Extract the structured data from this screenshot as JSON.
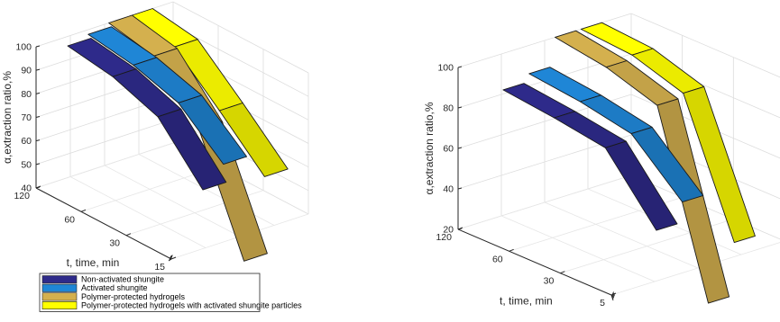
{
  "chart_data": [
    {
      "type": "3d-ribbon",
      "title": "",
      "zlabel": "α,extraction ratio,%",
      "ylabel": "t,  time, min",
      "zticks": [
        "40",
        "50",
        "60",
        "70",
        "80",
        "90",
        "100"
      ],
      "yticks": [
        "120",
        "60",
        "30",
        "15"
      ],
      "zlim": [
        40,
        100
      ],
      "grid": true,
      "legend_position": "bottom-left",
      "series": [
        {
          "name": "Non-activated shungite",
          "color": "#2e2a8a",
          "values": [
            96,
            93,
            86,
            65
          ]
        },
        {
          "name": "Activated shungite",
          "color": "#1f86d6",
          "values": [
            98,
            95,
            89,
            73
          ]
        },
        {
          "name": "Polymer-protected hydrogels",
          "color": "#d4b04e",
          "values": [
            100,
            96,
            75,
            29
          ]
        },
        {
          "name": "Polymer-protected hydrogels with activated shungite particles",
          "color": "#ffff00",
          "values": [
            100,
            97,
            80,
            62
          ]
        }
      ]
    },
    {
      "type": "3d-ribbon",
      "title": "",
      "zlabel": "α,extraction ratio,%",
      "ylabel": "t,  time, min",
      "zticks": [
        "20",
        "40",
        "60",
        "80",
        "100"
      ],
      "yticks": [
        "120",
        "60",
        "30",
        "5"
      ],
      "zlim": [
        20,
        100
      ],
      "grid": true,
      "series": [
        {
          "name": "Non-activated shungite",
          "color": "#2e2a8a",
          "values": [
            82,
            79,
            75,
            45
          ]
        },
        {
          "name": "Activated shungite",
          "color": "#1f86d6",
          "values": [
            86,
            83,
            78,
            55
          ]
        },
        {
          "name": "Polymer-protected hydrogels",
          "color": "#d4b04e",
          "values": [
            100,
            96,
            88,
            1
          ]
        },
        {
          "name": "Polymer-protected hydrogels with activated shungite particles",
          "color": "#ffff00",
          "values": [
            100,
            98,
            90,
            27
          ]
        }
      ]
    }
  ]
}
